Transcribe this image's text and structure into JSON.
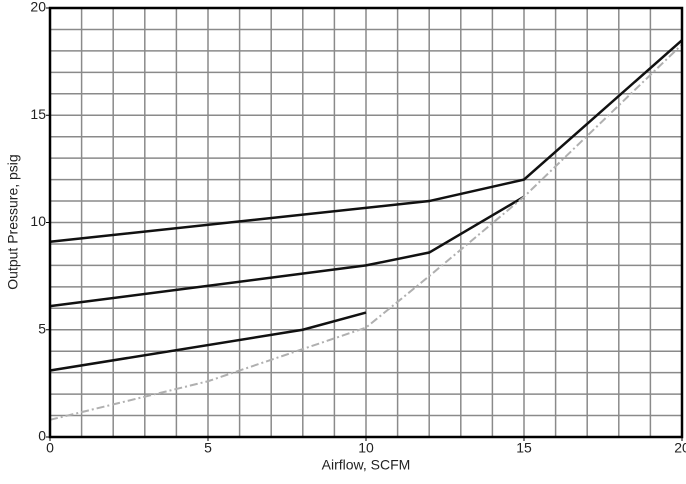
{
  "chart_data": {
    "type": "line",
    "xlabel": "Airflow, SCFM",
    "ylabel": "Output Pressure, psig",
    "xlim": [
      0,
      20
    ],
    "ylim": [
      0,
      20
    ],
    "xticks": [
      0,
      5,
      10,
      15,
      20
    ],
    "yticks": [
      0,
      5,
      10,
      15,
      20
    ],
    "xgrid": [
      1,
      2,
      3,
      4,
      5,
      6,
      7,
      8,
      9,
      10,
      11,
      12,
      13,
      14,
      15,
      16,
      17,
      18,
      19
    ],
    "ygrid": [
      1,
      2,
      3,
      4,
      5,
      6,
      7,
      8,
      9,
      10,
      11,
      12,
      13,
      14,
      15,
      16,
      17,
      18,
      19
    ],
    "grid_color": "#8a8a8a",
    "series": [
      {
        "color": "#111111",
        "dashed": false,
        "x": [
          0,
          12,
          15,
          20
        ],
        "values": [
          9.1,
          11,
          12,
          18.5
        ]
      },
      {
        "color": "#111111",
        "dashed": false,
        "x": [
          0,
          10,
          12,
          15
        ],
        "values": [
          6.1,
          8,
          8.6,
          11.2
        ]
      },
      {
        "color": "#111111",
        "dashed": false,
        "x": [
          0,
          8,
          10
        ],
        "values": [
          3.1,
          5,
          5.8
        ]
      },
      {
        "color": "#b0b0b0",
        "dashed": true,
        "x": [
          0,
          5,
          10,
          12,
          15,
          20
        ],
        "values": [
          0.8,
          2.6,
          5.1,
          7.5,
          11.2,
          18.3
        ]
      }
    ]
  }
}
